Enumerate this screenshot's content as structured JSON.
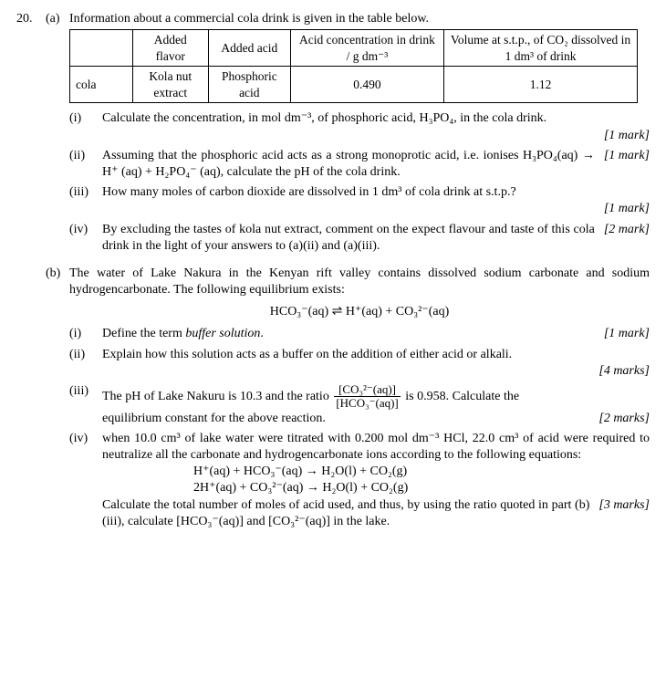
{
  "question_number": "20.",
  "part_a_label": "(a)",
  "intro_a": "Information about a commercial cola drink is given in the table below.",
  "table": {
    "headers": {
      "blank": "",
      "flavor": "Added flavor",
      "acid": "Added acid",
      "conc": "Acid concentration in drink / g dm⁻³",
      "vol": "Volume at s.t.p., of CO₂ dissolved in 1 dm³ of drink"
    },
    "row": {
      "name": "cola",
      "flavor": "Kola nut extract",
      "acid": "Phosphoric acid",
      "conc": "0.490",
      "vol": "1.12"
    }
  },
  "a_i_num": "(i)",
  "a_i_txt": "Calculate the concentration, in mol dm⁻³, of phosphoric acid, H₃PO₄, in the cola drink.",
  "a_i_mark": "[1 mark]",
  "a_ii_num": "(ii)",
  "a_ii_txt": "Assuming that the phosphoric acid acts as a strong monoprotic acid, i.e. ionises H₃PO₄(aq) → H⁺ (aq) + H₂PO₄⁻ (aq), calculate the pH of the cola drink.",
  "a_ii_mark": "[1 mark]",
  "a_iii_num": "(iii)",
  "a_iii_txt": "How many moles of carbon dioxide are dissolved in 1 dm³ of cola drink at s.t.p.?",
  "a_iii_mark": "[1 mark]",
  "a_iv_num": "(iv)",
  "a_iv_txt": "By excluding the tastes of kola nut extract, comment on the expect flavour and taste of this cola drink in the light of your answers to (a)(ii) and (a)(iii).",
  "a_iv_mark": "[2 mark]",
  "part_b_label": "(b)",
  "intro_b": "The water of Lake Nakura in the Kenyan rift valley contains dissolved sodium carbonate and sodium hydrogencarbonate. The following equilibrium exists:",
  "eq_b": "HCO₃⁻(aq)  ⇌  H⁺(aq)  +  CO₃²⁻(aq)",
  "b_i_num": "(i)",
  "b_i_txt": "Define the term buffer solution.",
  "b_i_mark": "[1 mark]",
  "b_ii_num": "(ii)",
  "b_ii_txt": "Explain how this solution acts as a buffer on the addition of either acid or alkali.",
  "b_ii_mark": "[4 marks]",
  "b_iii_num": "(iii)",
  "b_iii_txt_1": "The pH of Lake Nakuru is 10.3 and the ratio ",
  "b_iii_frac_num": "[CO₃²⁻(aq)]",
  "b_iii_frac_den": "[HCO₃⁻(aq)]",
  "b_iii_txt_2": " is 0.958. Calculate the",
  "b_iii_txt_3": "equilibrium constant for the above reaction.",
  "b_iii_mark": "[2 marks]",
  "b_iv_num": "(iv)",
  "b_iv_txt_1": "when 10.0 cm³ of lake water were titrated with 0.200 mol dm⁻³ HCl, 22.0 cm³ of acid were required to neutralize all the carbonate and hydrogencarbonate ions according to the following equations:",
  "b_iv_eq1": "H⁺(aq)  +  HCO₃⁻(aq)  →  H₂O(l)  +  CO₂(g)",
  "b_iv_eq2": "2H⁺(aq)  +  CO₃²⁻(aq)  →  H₂O(l)  +  CO₂(g)",
  "b_iv_txt_2": "Calculate the total number of moles of acid used, and thus, by using the ratio quoted in part (b)(iii), calculate [HCO₃⁻(aq)] and [CO₃²⁻(aq)] in the lake.",
  "b_iv_mark": "[3 marks]"
}
